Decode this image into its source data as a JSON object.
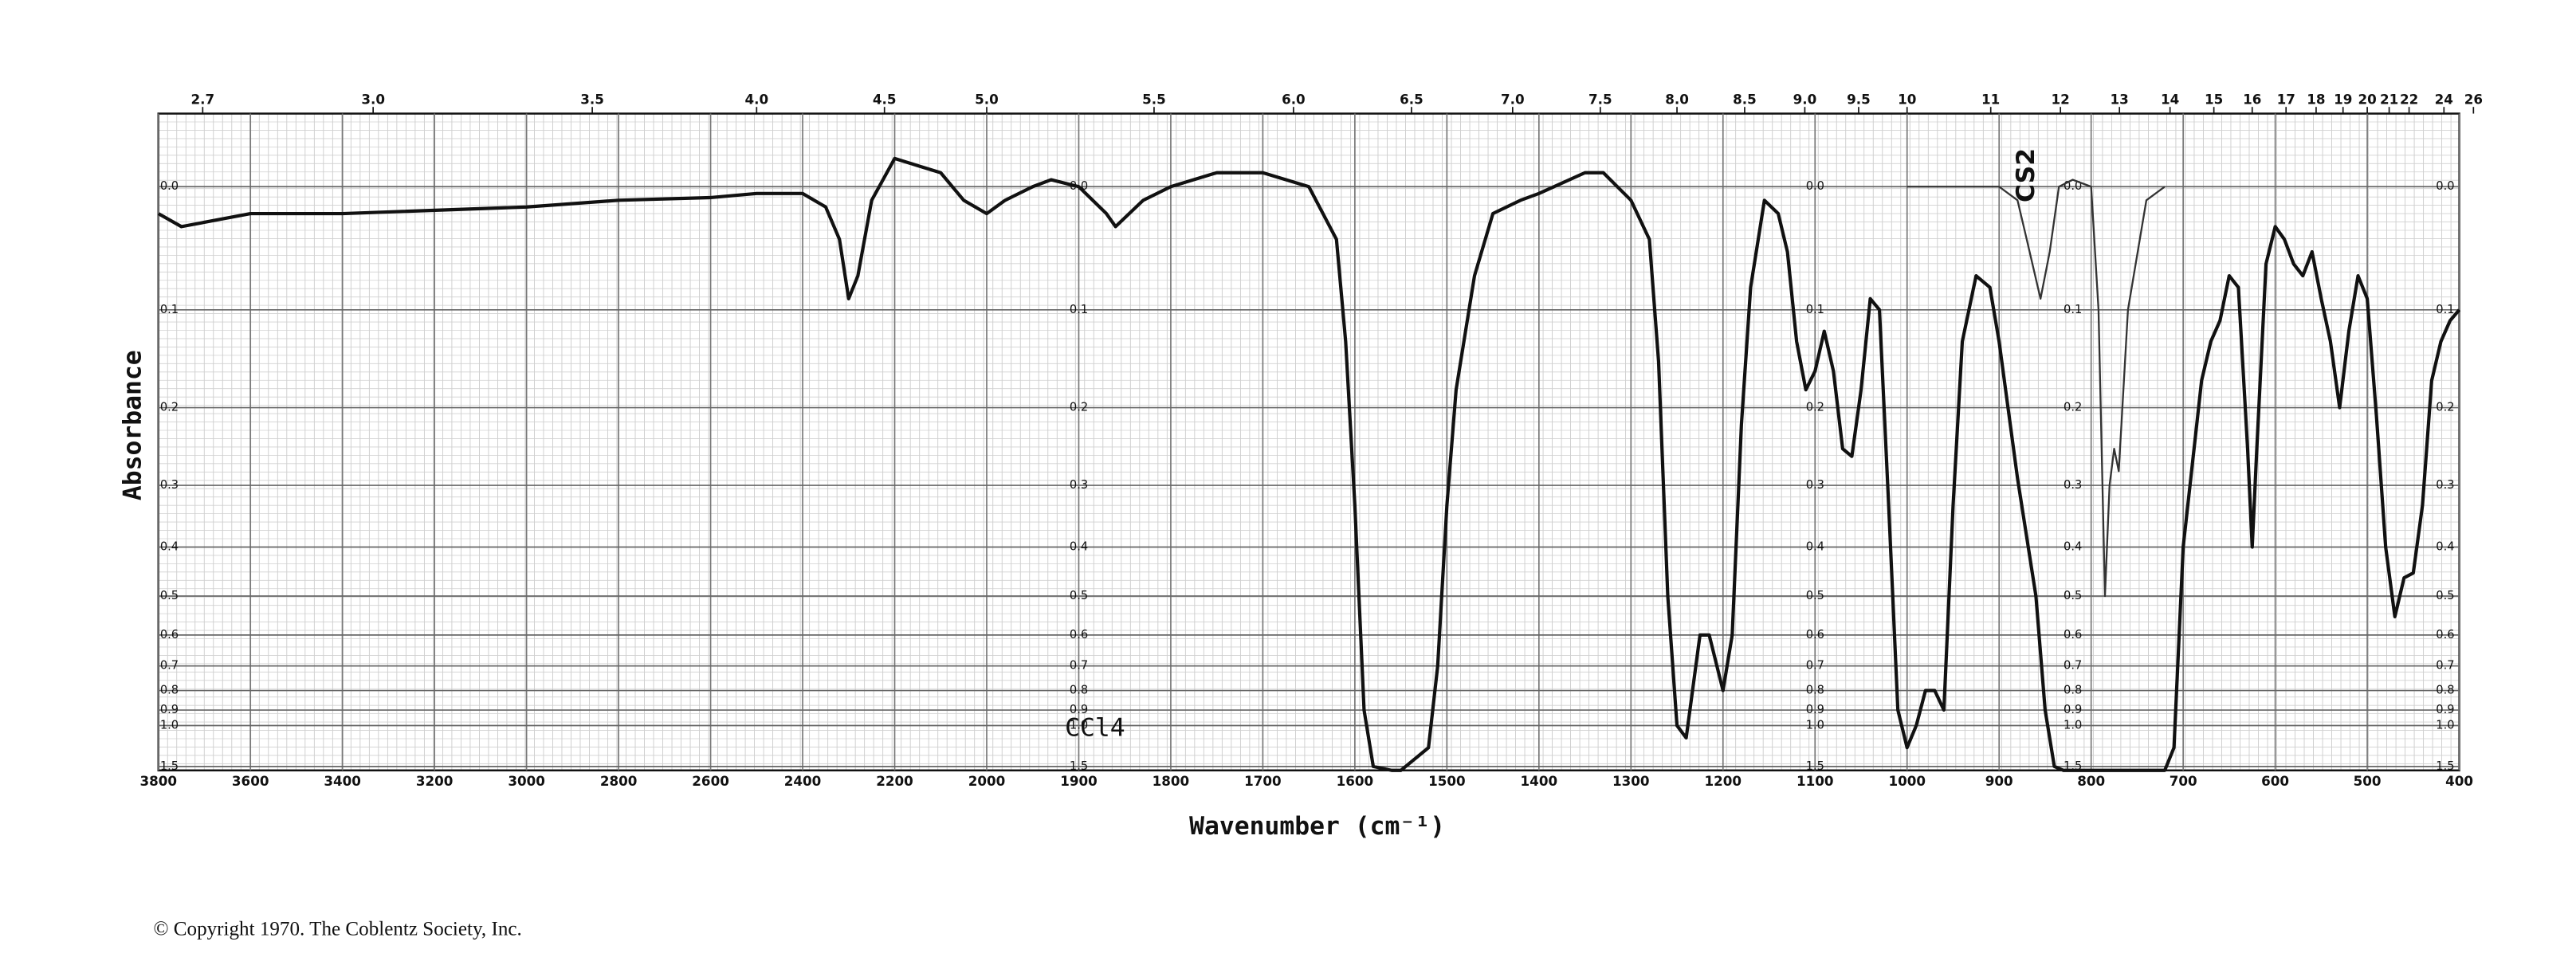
{
  "chart_data": {
    "type": "line",
    "x_label": "Wavenumber (cm⁻¹)",
    "y_label": "Absorbance",
    "footnote": "© Copyright 1970. The Coblentz Society, Inc.",
    "xlim": [
      3800,
      400
    ],
    "x_scale_break": 2000,
    "x_scale_ratio": 2,
    "ylim": [
      -0.05,
      1.6
    ],
    "y_scale": "transmittance",
    "grid": true,
    "xticks": [
      3800,
      3600,
      3400,
      3200,
      3000,
      2800,
      2600,
      2400,
      2200,
      2000,
      1900,
      1800,
      1700,
      1600,
      1500,
      1400,
      1300,
      1200,
      1100,
      1000,
      900,
      800,
      700,
      600,
      500,
      400
    ],
    "x2ticks": [
      2.7,
      {
        "value": 3,
        "label": "3.0"
      },
      3.5,
      {
        "value": 4,
        "label": "4.0"
      },
      4.5,
      {
        "value": 5,
        "label": "5.0"
      },
      5.5,
      {
        "value": 6,
        "label": "6.0"
      },
      6.5,
      {
        "value": 7,
        "label": "7.0"
      },
      7.5,
      {
        "value": 8,
        "label": "8.0"
      },
      8.5,
      {
        "value": 9,
        "label": "9.0"
      },
      9.5,
      10,
      11,
      12,
      13,
      14,
      15,
      16,
      17,
      18,
      19,
      20,
      21,
      22,
      24,
      26
    ],
    "yticks": [
      {
        "value": 0,
        "label": "0.0"
      },
      0.1,
      0.2,
      0.3,
      0.4,
      0.5,
      0.6,
      0.7,
      0.8,
      0.9,
      {
        "value": 1,
        "label": "1.0"
      },
      1.5
    ],
    "series": [
      {
        "name": "CCl4",
        "color": "#111111",
        "x": [
          3800,
          3750,
          3600,
          3400,
          3000,
          2800,
          2600,
          2500,
          2400,
          2350,
          2320,
          2300,
          2280,
          2250,
          2200,
          2150,
          2100,
          2050,
          2000,
          1980,
          1950,
          1930,
          1900,
          1870,
          1860,
          1830,
          1800,
          1750,
          1700,
          1650,
          1620,
          1610,
          1600,
          1590,
          1580,
          1560,
          1550,
          1520,
          1510,
          1500,
          1490,
          1470,
          1450,
          1420,
          1400,
          1350,
          1330,
          1300,
          1280,
          1270,
          1260,
          1250,
          1240,
          1225,
          1215,
          1200,
          1190,
          1180,
          1170,
          1155,
          1140,
          1130,
          1120,
          1110,
          1100,
          1090,
          1080,
          1070,
          1060,
          1050,
          1040,
          1030,
          1020,
          1010,
          1000,
          990,
          980,
          970,
          960,
          950,
          940,
          925,
          910,
          900,
          880,
          860,
          850,
          840,
          830,
          750,
          720,
          710,
          700,
          690,
          680,
          670,
          660,
          650,
          640,
          630,
          625,
          620,
          610,
          600,
          590,
          580,
          570,
          560,
          550,
          540,
          530,
          520,
          510,
          500,
          490,
          480,
          470,
          460,
          450,
          440,
          430,
          420,
          410,
          400
        ],
        "values": [
          0.02,
          0.03,
          0.02,
          0.02,
          0.015,
          0.01,
          0.008,
          0.005,
          0.005,
          0.015,
          0.04,
          0.09,
          0.07,
          0.01,
          -0.02,
          -0.015,
          -0.01,
          0.01,
          0.02,
          0.01,
          0,
          -0.005,
          0,
          0.02,
          0.03,
          0.01,
          0,
          -0.01,
          -0.01,
          0,
          0.04,
          0.13,
          0.33,
          0.9,
          1.5,
          1.6,
          1.6,
          1.2,
          0.7,
          0.33,
          0.18,
          0.07,
          0.02,
          0.01,
          0.005,
          -0.01,
          -0.01,
          0.01,
          0.04,
          0.15,
          0.5,
          1,
          1.1,
          0.6,
          0.6,
          0.8,
          0.6,
          0.22,
          0.08,
          0.01,
          0.02,
          0.05,
          0.13,
          0.18,
          0.16,
          0.12,
          0.16,
          0.25,
          0.26,
          0.18,
          0.09,
          0.1,
          0.33,
          0.9,
          1.2,
          1,
          0.8,
          0.8,
          0.9,
          0.33,
          0.13,
          0.07,
          0.08,
          0.13,
          0.29,
          0.5,
          0.9,
          1.5,
          1.6,
          1.6,
          1.6,
          1.2,
          0.4,
          0.27,
          0.17,
          0.13,
          0.11,
          0.07,
          0.08,
          0.25,
          0.4,
          0.25,
          0.06,
          0.03,
          0.04,
          0.06,
          0.07,
          0.05,
          0.09,
          0.13,
          0.2,
          0.12,
          0.07,
          0.09,
          0.21,
          0.4,
          0.55,
          0.46,
          0.45,
          0.33,
          0.17,
          0.13,
          0.11,
          0.1
        ]
      },
      {
        "name": "CS2",
        "color": "#333333",
        "x": [
          1000,
          950,
          900,
          880,
          870,
          855,
          845,
          835,
          820,
          800,
          792,
          785,
          780,
          775,
          770,
          760,
          740,
          720
        ],
        "values": [
          0,
          0,
          0,
          0.01,
          0.04,
          0.09,
          0.05,
          0,
          -0.005,
          0,
          0.1,
          0.5,
          0.3,
          0.25,
          0.28,
          0.1,
          0.01,
          0
        ]
      }
    ]
  }
}
